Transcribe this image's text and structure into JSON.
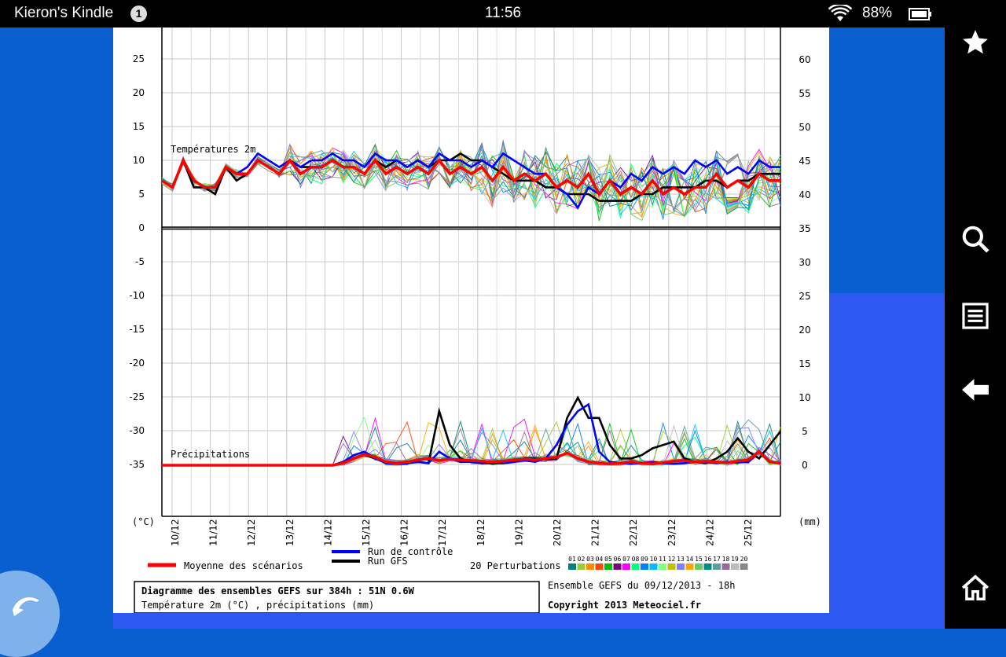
{
  "statusbar": {
    "owner": "Kieron's Kindle",
    "notification_count": "1",
    "time": "11:56",
    "battery": "88%"
  },
  "sidebar": {
    "icons": [
      "star-icon",
      "search-icon",
      "menu-icon",
      "back-arrow-icon",
      "home-icon"
    ]
  },
  "colors": {
    "background": "#0a5fd0",
    "mean": "#ff0000",
    "control": "#0000ff",
    "gfs": "#000000"
  },
  "chart_data": {
    "type": "line",
    "title": "Diagramme des ensembles GEFS sur 384h : 51N 0.6W",
    "subtitle": "Température 2m (°C) , précipitations (mm)",
    "run_info": "Ensemble GEFS du 09/12/2013 - 18h",
    "copyright": "Copyright 2013 Meteociel.fr",
    "temp_label": "Températures 2m",
    "precip_label": "Précipitations",
    "left_unit": "(°C)",
    "right_unit": "(mm)",
    "left_ticks": [
      25,
      20,
      15,
      10,
      5,
      0,
      -5,
      -10,
      -15,
      -20,
      -25,
      -30,
      -35
    ],
    "right_ticks": [
      60,
      55,
      50,
      45,
      40,
      35,
      30,
      25,
      20,
      15,
      10,
      5,
      0
    ],
    "dates": [
      "10/12",
      "11/12",
      "12/12",
      "13/12",
      "14/12",
      "15/12",
      "16/12",
      "17/12",
      "18/12",
      "19/12",
      "20/12",
      "21/12",
      "22/12",
      "23/12",
      "24/12",
      "25/12"
    ],
    "legend": {
      "mean": "Moyenne des scénarios",
      "control": "Run de contrôle",
      "gfs": "Run GFS",
      "perturbations": "20 Perturbations",
      "members": [
        "01",
        "02",
        "03",
        "04",
        "05",
        "06",
        "07",
        "08",
        "09",
        "10",
        "11",
        "12",
        "13",
        "14",
        "15",
        "16",
        "17",
        "18",
        "19",
        "20"
      ],
      "member_colors": [
        "#008080",
        "#9acd32",
        "#ff8c00",
        "#ff4500",
        "#00c000",
        "#800080",
        "#ff00ff",
        "#00ff80",
        "#0080ff",
        "#00bfff",
        "#80ff80",
        "#c0c000",
        "#8080ff",
        "#ffa500",
        "#66cc66",
        "#008b8b",
        "#5f9ea0",
        "#996699",
        "#bbbbbb",
        "#888888"
      ]
    },
    "series": [
      {
        "name": "Moyenne des scénarios",
        "temp": [
          7,
          6,
          10,
          7,
          6,
          6,
          9,
          8,
          8,
          10,
          9,
          8,
          10,
          8,
          9,
          9,
          10,
          9,
          9,
          8,
          10,
          8,
          9,
          8,
          9,
          8,
          10,
          8,
          9,
          8,
          9,
          7,
          9,
          7,
          8,
          7,
          8,
          6,
          7,
          6,
          8,
          5,
          7,
          5,
          6,
          5,
          7,
          5,
          6,
          5,
          6,
          6,
          8,
          6,
          7,
          6,
          8,
          7,
          7
        ],
        "precip": [
          0,
          0,
          0,
          0,
          0,
          0,
          0,
          0,
          0,
          0,
          0,
          0,
          0,
          0,
          0,
          0,
          0,
          0.3,
          1,
          1.6,
          1.2,
          0.5,
          0.3,
          0.5,
          0.8,
          1,
          0.7,
          0.9,
          0.8,
          0.7,
          0.6,
          0.5,
          0.6,
          0.8,
          0.9,
          0.8,
          1,
          1.2,
          1.8,
          1,
          0.5,
          0.3,
          0.2,
          0.3,
          0.5,
          0.3,
          0.2,
          0.4,
          0.6,
          0.7,
          0.5,
          0.6,
          0.5,
          0.4,
          0.6,
          0.8,
          2,
          0.5,
          0.3
        ]
      },
      {
        "name": "Run de contrôle",
        "temp": [
          7,
          6,
          10,
          7,
          6,
          6,
          9,
          8,
          9,
          11,
          10,
          9,
          10,
          9,
          10,
          10,
          11,
          10,
          10,
          9,
          11,
          10,
          10,
          9,
          10,
          9,
          11,
          10,
          10,
          9,
          10,
          9,
          11,
          10,
          9,
          8,
          8,
          6,
          5,
          3,
          6,
          5,
          7,
          6,
          8,
          7,
          9,
          8,
          9,
          8,
          10,
          9,
          10,
          8,
          9,
          8,
          10,
          9,
          9
        ],
        "precip": [
          0,
          0,
          0,
          0,
          0,
          0,
          0,
          0,
          0,
          0,
          0,
          0,
          0,
          0,
          0,
          0,
          0,
          0.5,
          1.5,
          2,
          1,
          0.3,
          0.2,
          0.3,
          0.5,
          0.3,
          2,
          1,
          0.5,
          0.5,
          0.3,
          0.5,
          0.4,
          0.5,
          0.7,
          0.5,
          1,
          3,
          6,
          8,
          9,
          2,
          0.5,
          0.3,
          0.2,
          0.3,
          0.5,
          0.3,
          0.2,
          0.3,
          0.5,
          0.5,
          0.3,
          0.5,
          0.4,
          0.5,
          2,
          0.5,
          0.3
        ]
      },
      {
        "name": "Run GFS",
        "temp": [
          7,
          6,
          10,
          6,
          6,
          5,
          9,
          7,
          8,
          10,
          9,
          8,
          10,
          9,
          9,
          9,
          10,
          9,
          9,
          8,
          10,
          9,
          10,
          9,
          10,
          9,
          10,
          10,
          11,
          10,
          10,
          9,
          8,
          7,
          7,
          7,
          6,
          6,
          5,
          5,
          5,
          4,
          4,
          4,
          4,
          5,
          5,
          6,
          6,
          6,
          6,
          7,
          7,
          6,
          7,
          7,
          8,
          8,
          8
        ],
        "precip": [
          0,
          0,
          0,
          0,
          0,
          0,
          0,
          0,
          0,
          0,
          0,
          0,
          0,
          0,
          0,
          0,
          0,
          0.3,
          1,
          1.5,
          1,
          0.5,
          0.3,
          0.3,
          0.5,
          0.3,
          8,
          3,
          1,
          0.5,
          0.3,
          0.3,
          0.3,
          0.5,
          1,
          1,
          0.8,
          1,
          7,
          10,
          7,
          7,
          3,
          1,
          1,
          1.5,
          2.5,
          3,
          3.5,
          1,
          0.5,
          0.3,
          1,
          2,
          4,
          2,
          1,
          3,
          5
        ]
      }
    ],
    "left_ylim": [
      -35,
      30
    ],
    "right_ylim": [
      0,
      65
    ],
    "grid": true
  }
}
